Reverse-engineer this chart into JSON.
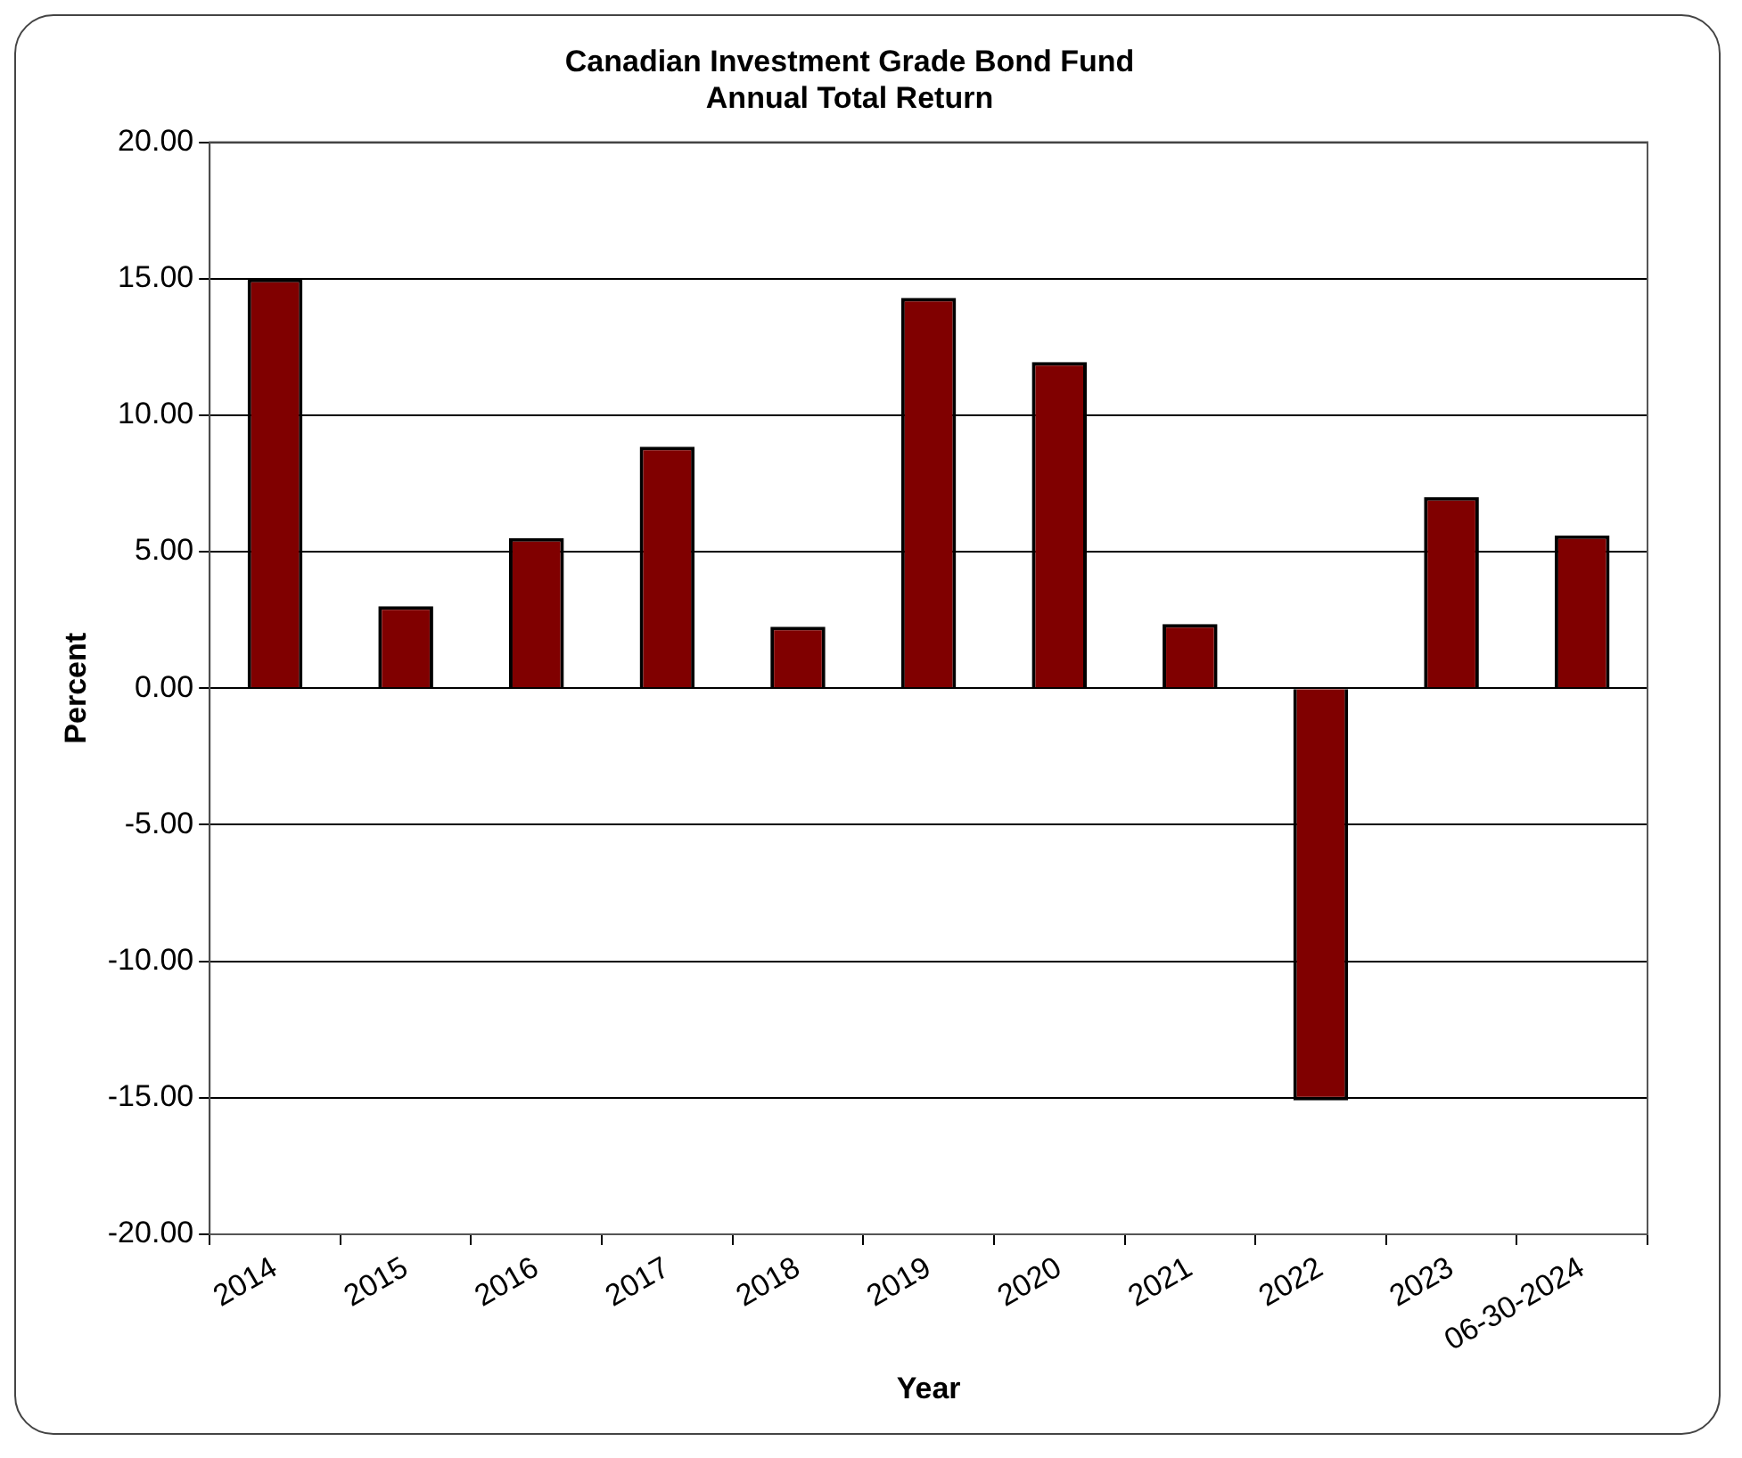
{
  "chart_data": {
    "type": "bar",
    "title": "Canadian Investment Grade Bond Fund",
    "subtitle": "Annual Total Return",
    "xlabel": "Year",
    "ylabel": "Percent",
    "categories": [
      "2014",
      "2015",
      "2016",
      "2017",
      "2018",
      "2019",
      "2020",
      "2021",
      "2022",
      "2023",
      "06-30-2024"
    ],
    "values": [
      15.0,
      3.0,
      5.5,
      8.85,
      2.25,
      14.3,
      11.95,
      2.35,
      -15.1,
      7.0,
      5.6
    ],
    "color": "#800000",
    "ylim": [
      -20,
      20
    ],
    "yticks": [
      {
        "value": -20,
        "label": "-20.00"
      },
      {
        "value": -15,
        "label": "-15.00"
      },
      {
        "value": -10,
        "label": "-10.00"
      },
      {
        "value": -5,
        "label": "-5.00"
      },
      {
        "value": 0,
        "label": "0.00"
      },
      {
        "value": 5,
        "label": "5.00"
      },
      {
        "value": 10,
        "label": "10.00"
      },
      {
        "value": 15,
        "label": "15.00"
      },
      {
        "value": 20,
        "label": "20.00"
      }
    ],
    "grid": "y",
    "legend": false
  }
}
